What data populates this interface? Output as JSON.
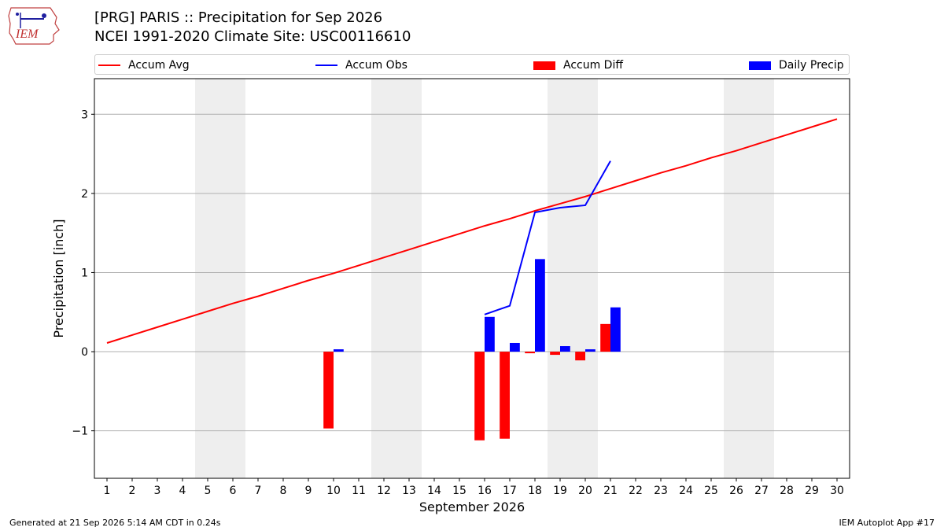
{
  "page": {
    "title_line1": "[PRG] PARIS :: Precipitation for Sep 2026",
    "title_line2": "NCEI 1991-2020 Climate Site: USC00116610",
    "footer_left": "Generated at 21 Sep 2026 5:14 AM CDT in 0.24s",
    "footer_right": "IEM Autoplot App #17",
    "logo_text": "IEM"
  },
  "colors": {
    "avg": "#ff0000",
    "obs": "#0000ff",
    "diff": "#ff0000",
    "daily": "#0000ff",
    "weekend_band": "#eeeeee",
    "grid": "#b0b0b0"
  },
  "legend": {
    "accum_avg": "Accum Avg",
    "accum_obs": "Accum Obs",
    "accum_diff": "Accum Diff",
    "daily_precip": "Daily Precip"
  },
  "chart_data": {
    "type": "bar",
    "xlabel": "September 2026",
    "ylabel": "Precipitation [inch]",
    "x": [
      1,
      2,
      3,
      4,
      5,
      6,
      7,
      8,
      9,
      10,
      11,
      12,
      13,
      14,
      15,
      16,
      17,
      18,
      19,
      20,
      21,
      22,
      23,
      24,
      25,
      26,
      27,
      28,
      29,
      30
    ],
    "xlim": [
      0.5,
      30.5
    ],
    "ylim": [
      -1.6,
      3.45
    ],
    "yticks": [
      -1,
      0,
      1,
      2,
      3
    ],
    "ytick_labels": [
      "−1",
      "0",
      "1",
      "2",
      "3"
    ],
    "grid": "horizontal",
    "legend_position": "top",
    "weekend_days": [
      5,
      6,
      12,
      13,
      19,
      20,
      26,
      27
    ],
    "series": [
      {
        "name": "Accum Avg",
        "kind": "line",
        "x": [
          1,
          2,
          3,
          4,
          5,
          6,
          7,
          8,
          9,
          10,
          11,
          12,
          13,
          14,
          15,
          16,
          17,
          18,
          19,
          20,
          21,
          22,
          23,
          24,
          25,
          26,
          27,
          28,
          29,
          30
        ],
        "values": [
          0.11,
          0.21,
          0.31,
          0.41,
          0.51,
          0.61,
          0.7,
          0.8,
          0.9,
          0.99,
          1.09,
          1.19,
          1.29,
          1.39,
          1.49,
          1.59,
          1.68,
          1.78,
          1.87,
          1.96,
          2.06,
          2.16,
          2.26,
          2.35,
          2.45,
          2.54,
          2.64,
          2.74,
          2.84,
          2.94
        ]
      },
      {
        "name": "Accum Obs",
        "kind": "line",
        "x": [
          16,
          17,
          18,
          19,
          20,
          21
        ],
        "values": [
          0.47,
          0.58,
          1.76,
          1.82,
          1.85,
          2.41
        ]
      },
      {
        "name": "Accum Diff",
        "kind": "bar",
        "x": [
          10,
          16,
          17,
          18,
          19,
          20,
          21
        ],
        "values": [
          -0.97,
          -1.12,
          -1.1,
          -0.02,
          -0.04,
          -0.11,
          0.35
        ]
      },
      {
        "name": "Daily Precip",
        "kind": "bar",
        "x": [
          10,
          16,
          17,
          18,
          19,
          20,
          21
        ],
        "values": [
          0.03,
          0.44,
          0.11,
          1.17,
          0.07,
          0.03,
          0.56
        ]
      }
    ]
  }
}
